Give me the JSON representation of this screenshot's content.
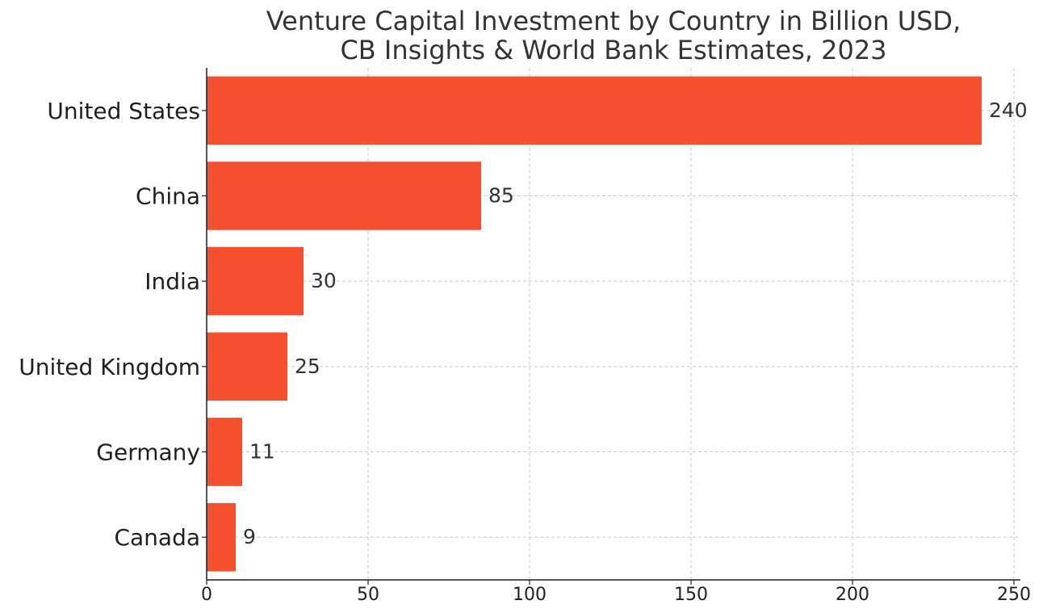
{
  "chart_data": {
    "type": "bar",
    "orientation": "horizontal",
    "title": [
      "Venture Capital Investment by Country in Billion USD,",
      "CB Insights & World Bank Estimates, 2023"
    ],
    "xlabel": "",
    "ylabel": "",
    "categories": [
      "United States",
      "China",
      "India",
      "United Kingdom",
      "Germany",
      "Canada"
    ],
    "values": [
      240,
      85,
      30,
      25,
      11,
      9
    ],
    "data_labels": [
      "240",
      "85",
      "30",
      "25",
      "11",
      "9"
    ],
    "xlim": [
      0,
      252
    ],
    "xticks": [
      0,
      50,
      100,
      150,
      200,
      250
    ],
    "xtick_labels": [
      "0",
      "50",
      "100",
      "150",
      "200",
      "250"
    ],
    "grid": true,
    "bar_color": "#f44f2e"
  }
}
